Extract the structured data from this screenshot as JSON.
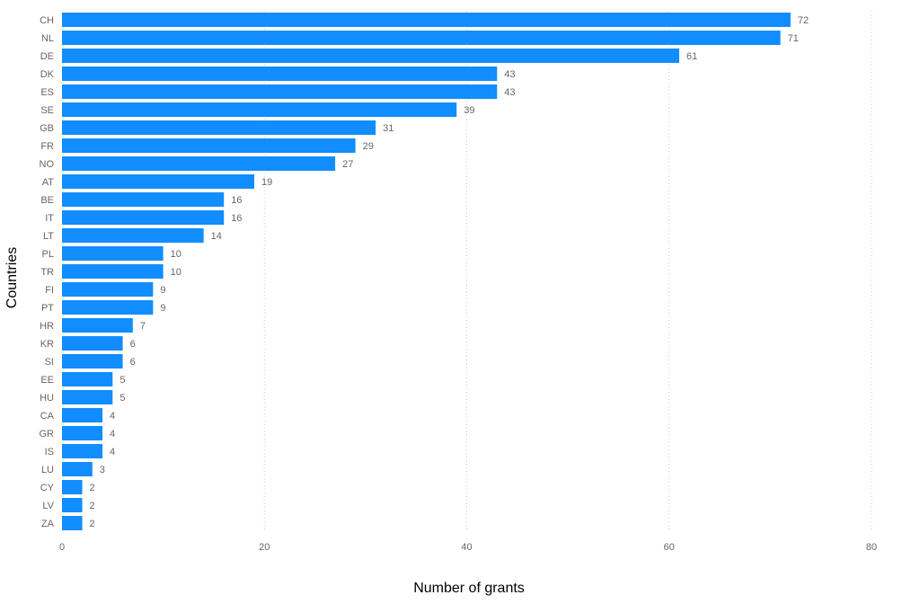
{
  "chart_data": {
    "type": "bar",
    "orientation": "horizontal",
    "categories": [
      "CH",
      "NL",
      "DE",
      "DK",
      "ES",
      "SE",
      "GB",
      "FR",
      "NO",
      "AT",
      "BE",
      "IT",
      "LT",
      "PL",
      "TR",
      "FI",
      "PT",
      "HR",
      "KR",
      "SI",
      "EE",
      "HU",
      "CA",
      "GR",
      "IS",
      "LU",
      "CY",
      "LV",
      "ZA"
    ],
    "values": [
      72,
      71,
      61,
      43,
      43,
      39,
      31,
      29,
      27,
      19,
      16,
      16,
      14,
      10,
      10,
      9,
      9,
      7,
      6,
      6,
      5,
      5,
      4,
      4,
      4,
      3,
      2,
      2,
      2
    ],
    "xlabel": "Number of grants",
    "ylabel": "Countries",
    "xlim": [
      0,
      80
    ],
    "xticks": [
      0,
      20,
      40,
      60,
      80
    ],
    "grid": true,
    "data_labels": true,
    "bar_color": "#118DFF"
  }
}
